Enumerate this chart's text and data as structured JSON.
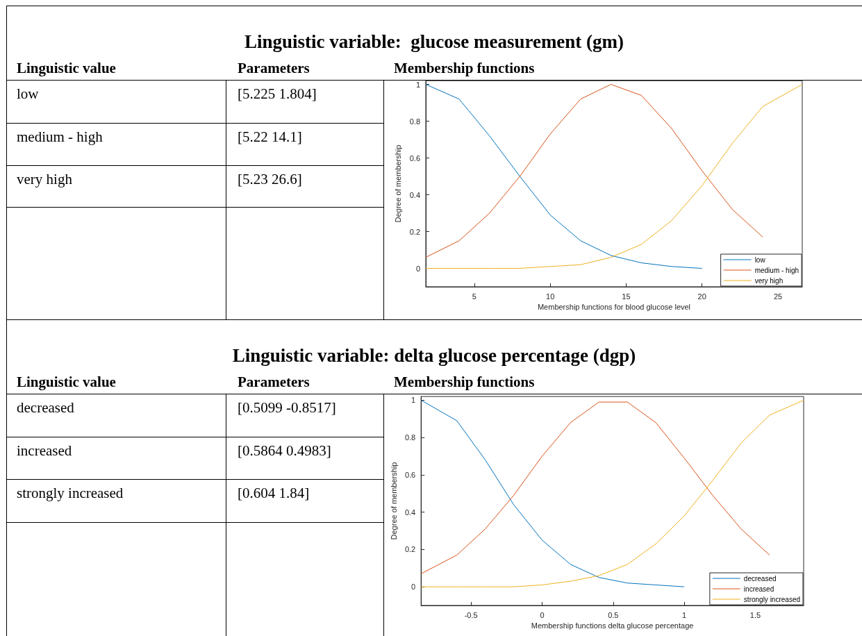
{
  "chart_data": [
    {
      "type": "line",
      "title": "Linguistic variable:  glucose measurement (gm)",
      "xlabel": "Membership functions for blood glucose level",
      "ylabel": "Degree of membership",
      "annotations": [
        "Linguistic value",
        "Parameters",
        "Membership functions",
        "[5.225 1.804]",
        "[5.22 14.1]",
        "[5.23 26.6]"
      ],
      "x": [
        1.804,
        4,
        6,
        8,
        10,
        12,
        14,
        16,
        18,
        20,
        22,
        24,
        26.6
      ],
      "series": [
        {
          "name": "low",
          "color": "#0072bd",
          "values": [
            1,
            0.92,
            0.72,
            0.5,
            0.29,
            0.15,
            0.07,
            0.03,
            0.01,
            0,
            null,
            null,
            null
          ]
        },
        {
          "name": "medium - high",
          "color": "#d95319",
          "values": [
            0.06,
            0.15,
            0.3,
            0.5,
            0.73,
            0.92,
            1,
            0.94,
            0.76,
            0.53,
            0.32,
            0.17,
            null
          ]
        },
        {
          "name": "very high",
          "color": "#edb120",
          "values": [
            0,
            0,
            0,
            0,
            0.01,
            0.02,
            0.06,
            0.13,
            0.26,
            0.45,
            0.68,
            0.88,
            1
          ]
        }
      ],
      "xlim": [
        1.804,
        26.6
      ],
      "xticks": [
        5,
        10,
        15,
        20,
        25
      ],
      "ylim": [
        -0.1,
        1.02
      ],
      "yticks": [
        0,
        0.2,
        0.4,
        0.6,
        0.8,
        1
      ],
      "grid": false,
      "legend": "bottom right",
      "marker": "none",
      "line_style": "solid"
    },
    {
      "type": "line",
      "title": "Linguistic variable: delta glucose percentage (dgp)",
      "xlabel": "Membership functions delta glucose percentage",
      "ylabel": "Degree of membership",
      "annotations": [
        "Linguistic value",
        "Parameters",
        "Membership functions",
        "[0.5099 -0.8517]",
        "[0.5864 0.4983]",
        "[0.604 1.84]"
      ],
      "x": [
        -0.8517,
        -0.6,
        -0.4,
        -0.2,
        0,
        0.2,
        0.4,
        0.6,
        0.8,
        1,
        1.2,
        1.4,
        1.6,
        1.84
      ],
      "series": [
        {
          "name": "decreased",
          "color": "#0072bd",
          "values": [
            1,
            0.89,
            0.68,
            0.44,
            0.25,
            0.12,
            0.05,
            0.02,
            0.01,
            0,
            null,
            null,
            null,
            null
          ]
        },
        {
          "name": "increased",
          "color": "#d95319",
          "values": [
            0.07,
            0.17,
            0.31,
            0.49,
            0.7,
            0.88,
            0.99,
            0.99,
            0.88,
            0.69,
            0.49,
            0.31,
            0.17,
            null
          ]
        },
        {
          "name": "strongly increased",
          "color": "#edb120",
          "values": [
            0,
            0,
            0,
            0,
            0.01,
            0.03,
            0.06,
            0.12,
            0.23,
            0.38,
            0.57,
            0.77,
            0.92,
            1
          ]
        }
      ],
      "xlim": [
        -0.8517,
        1.84
      ],
      "xticks": [
        -0.5,
        0,
        0.5,
        1,
        1.5
      ],
      "ylim": [
        -0.1,
        1.02
      ],
      "yticks": [
        0,
        0.2,
        0.4,
        0.6,
        0.8,
        1
      ],
      "grid": false,
      "legend": "bottom right",
      "marker": "none",
      "line_style": "solid"
    }
  ]
}
